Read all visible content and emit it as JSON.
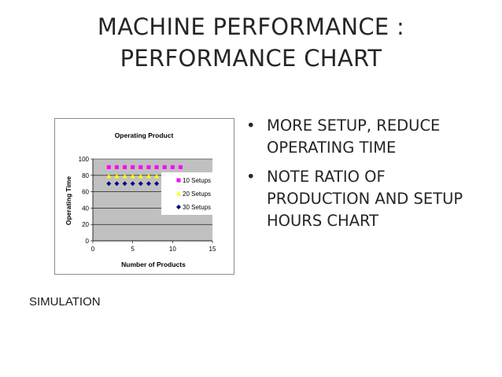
{
  "slide": {
    "title_line1": "MACHINE PERFORMANCE :",
    "title_line2": "PERFORMANCE CHART",
    "bullets": [
      "MORE SETUP, REDUCE OPERATING TIME",
      "NOTE RATIO OF PRODUCTION AND SETUP HOURS CHART"
    ],
    "bullet_glyph": "•",
    "footer": "SIMULATION"
  },
  "chart_data": {
    "type": "scatter",
    "title": "Operating Product",
    "xlabel": "Number of Products",
    "ylabel": "Operating Time",
    "xlim": [
      0,
      15
    ],
    "ylim": [
      0,
      100
    ],
    "x_ticks": [
      "0",
      "5",
      "10",
      "15"
    ],
    "y_ticks": [
      "0",
      "20",
      "40",
      "60",
      "80",
      "100"
    ],
    "grid": "horizontal",
    "plot_background": "#c0c0c0",
    "legend_position": "right",
    "series": [
      {
        "name": "10 Setups",
        "marker": "square",
        "color": "#ff00ff",
        "x": [
          2,
          3,
          4,
          5,
          6,
          7,
          8,
          9,
          10,
          11
        ],
        "y": [
          90,
          90,
          90,
          90,
          90,
          90,
          90,
          90,
          90,
          90
        ]
      },
      {
        "name": "20 Setups",
        "marker": "triangle",
        "color": "#ffff00",
        "x": [
          2,
          3,
          4,
          5,
          6,
          7,
          8,
          9,
          10
        ],
        "y": [
          79,
          79,
          79,
          79,
          79,
          79,
          79,
          79,
          79
        ]
      },
      {
        "name": "30 Setups",
        "marker": "diamond",
        "color": "#000080",
        "x": [
          2,
          3,
          4,
          5,
          6,
          7,
          8,
          9
        ],
        "y": [
          70,
          70,
          70,
          70,
          70,
          70,
          70,
          70
        ]
      }
    ]
  }
}
